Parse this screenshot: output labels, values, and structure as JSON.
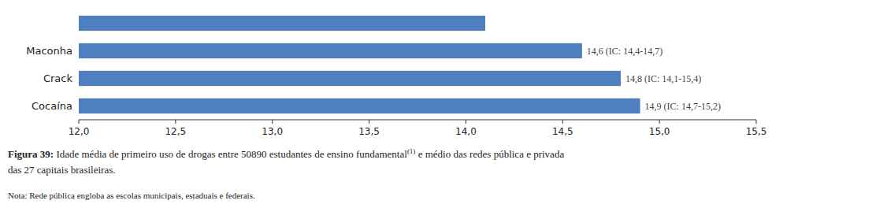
{
  "chart_data": {
    "type": "bar",
    "orientation": "horizontal",
    "categories": [
      "Cocaína",
      "Crack",
      "Maconha",
      null
    ],
    "values": [
      14.9,
      14.8,
      14.6,
      14.1
    ],
    "data_labels": true,
    "value_labels": [
      "14,9 (IC: 14,7-15,2)",
      "14,8 (IC: 14,1-15,4)",
      "14,6 (IC: 14,4-14,7)",
      null
    ],
    "color": "#4f7fbe",
    "xlim": [
      12.0,
      15.5
    ],
    "xticks": [
      {
        "value": 12.0,
        "label": "12,0"
      },
      {
        "value": 12.5,
        "label": "12,5"
      },
      {
        "value": 13.0,
        "label": "13,0"
      },
      {
        "value": 13.5,
        "label": "13,5"
      },
      {
        "value": 14.0,
        "label": "14,0"
      },
      {
        "value": 14.5,
        "label": "14,5"
      },
      {
        "value": 15.0,
        "label": "15,0"
      },
      {
        "value": 15.5,
        "label": "15,5"
      }
    ],
    "caption_label": "Figura 39:",
    "caption": " Idade média de primeiro uso de drogas entre 50890 estudantes de ensino fundamental",
    "caption_superscript": "(1)",
    "caption_end": " e médio das redes pública e privada",
    "caption_line2": "das 27 capitais brasileiras.",
    "note": "Nota: Rede pública engloba as escolas municipais, estaduais e federais."
  }
}
